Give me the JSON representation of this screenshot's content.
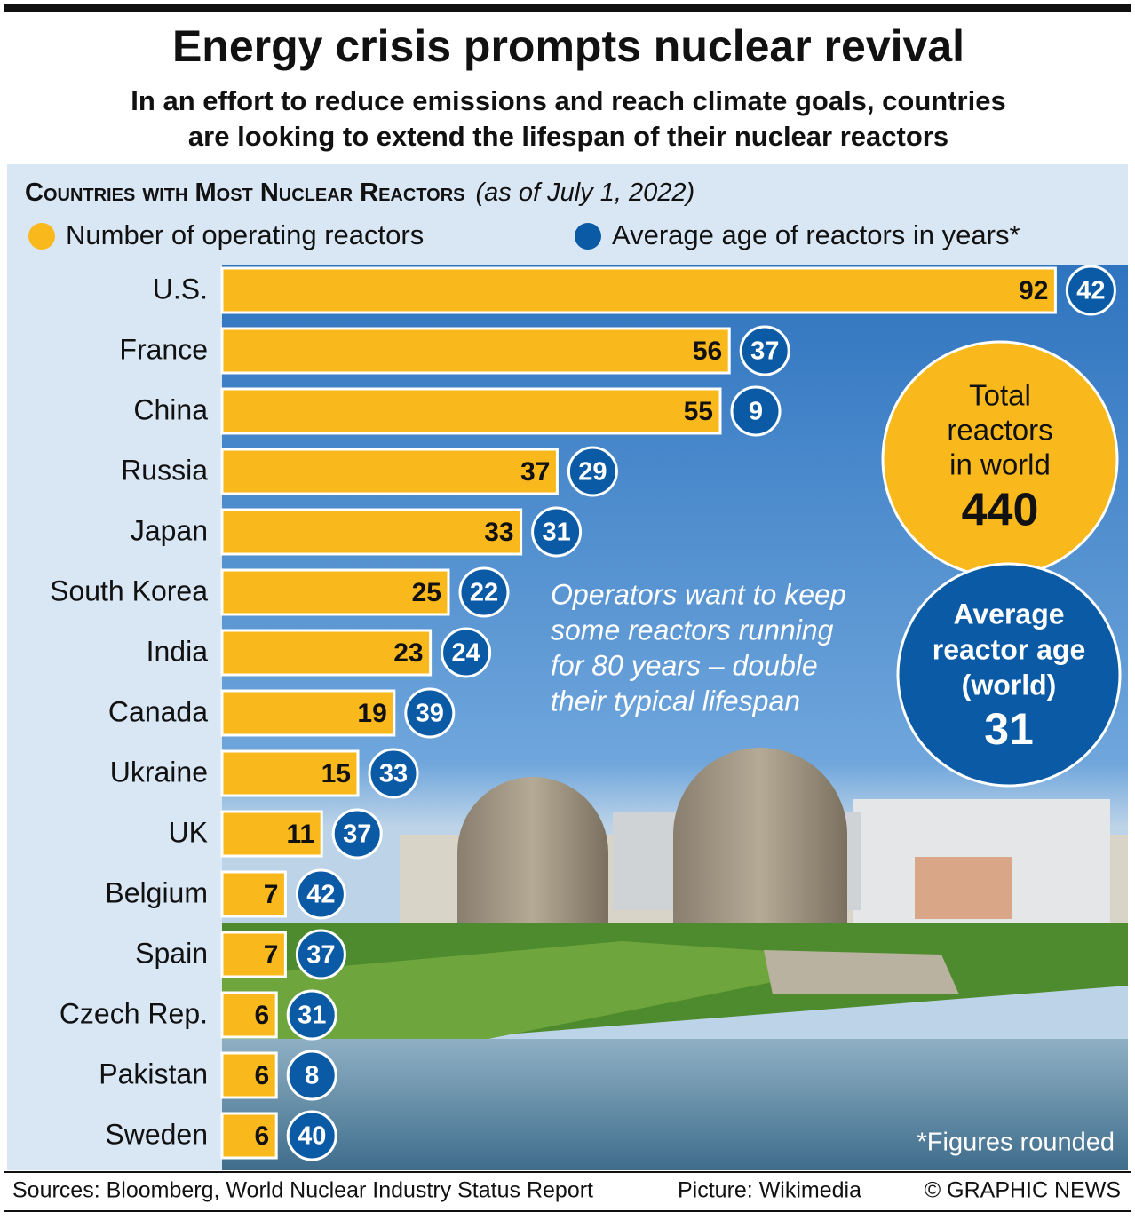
{
  "chart_data": {
    "type": "bar",
    "title": "Energy crisis prompts nuclear revival",
    "subtitle": [
      "In an effort to reduce emissions and reach climate goals, countries",
      "are looking to extend the lifespan of their nuclear reactors"
    ],
    "heading": "Countries with Most Nuclear Reactors",
    "date": "(as of July 1, 2022)",
    "categories": [
      "U.S.",
      "France",
      "China",
      "Russia",
      "Japan",
      "South Korea",
      "India",
      "Canada",
      "Ukraine",
      "UK",
      "Belgium",
      "Spain",
      "Czech Rep.",
      "Pakistan",
      "Sweden"
    ],
    "series": [
      {
        "name": "Number of operating reactors",
        "color": "#f9b91c",
        "values": [
          92,
          56,
          55,
          37,
          33,
          25,
          23,
          19,
          15,
          11,
          7,
          7,
          6,
          6,
          6
        ]
      },
      {
        "name": "Average age of reactors in years*",
        "color": "#0a5aa5",
        "values": [
          42,
          37,
          9,
          29,
          31,
          22,
          24,
          39,
          33,
          37,
          42,
          37,
          31,
          8,
          40
        ]
      }
    ],
    "total_label": [
      "Total",
      "reactors",
      "in world"
    ],
    "total_value": 440,
    "average_label": [
      "Average",
      "reactor age",
      "(world)"
    ],
    "average_value": 31,
    "annotation": [
      "Operators want to keep",
      "some reactors running",
      "for 80 years – double",
      "their typical lifespan"
    ],
    "footnote": "*Figures rounded",
    "sources": "Sources: Bloomberg, World Nuclear Industry Status Report",
    "picture_credit": "Picture: Wikimedia",
    "copyright": "© GRAPHIC NEWS"
  }
}
